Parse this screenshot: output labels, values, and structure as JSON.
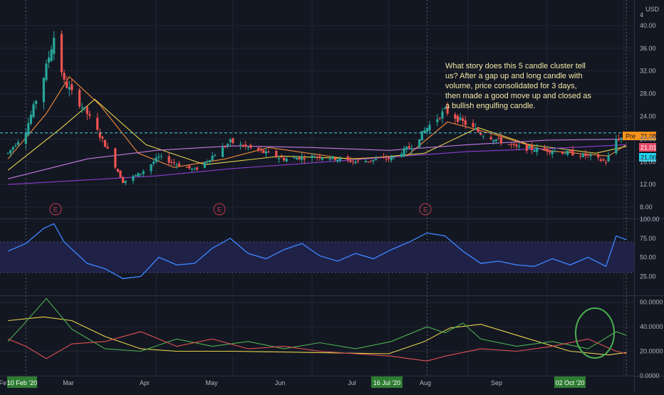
{
  "colors": {
    "background": "#131722",
    "grid": "#222633",
    "separator": "#2f3342",
    "axis_text": "#b2b5be",
    "bull": "#26a69a",
    "bear": "#ef5350",
    "ma_fast": "#f28b3a",
    "ma_slow": "#e6d24a",
    "ma_mid": "#c37be0",
    "ma_long": "#8e3fcf",
    "rsi": "#3b82f6",
    "rsi_band": "#1f2146",
    "rsi_level": "#4a4f8c",
    "dmi_adx": "#e6d24a",
    "dmi_plus": "#4caf50",
    "dmi_minus": "#e05252",
    "annotation_text": "#f4e9a6",
    "date_label_bg": "#2e7d32",
    "price_pre_bg": "#f7931a",
    "price_last_bg": "#e84b6a",
    "price_cur_bg": "#22d3ee",
    "earnings": "#c0394b",
    "ellipse": "#4caf50",
    "hline": "#4dd0e1"
  },
  "price_pane": {
    "currency": "USD",
    "y_ticks": [
      "4",
      "40.00",
      "36.00",
      "32.00",
      "28.00",
      "24.00",
      "20.00",
      "16.00",
      "12.00",
      "8.00"
    ],
    "earnings_label": "E",
    "annotation": [
      "What story does this 5 candle cluster tell",
      "us?  After a gap up and long candle with",
      "volume, price consolidated for 3 days,",
      "then made a good move up and closed as",
      "a bullish engulfing candle."
    ],
    "labels": {
      "pre_tag": "Pre",
      "pre_value": "21.08",
      "last_value": "21.01",
      "current_value": "21.00"
    }
  },
  "rsi_pane": {
    "y_ticks": [
      "100.00",
      "75.00",
      "50.00",
      "25.00"
    ]
  },
  "dmi_pane": {
    "y_ticks": [
      "60.0000",
      "40.0000",
      "20.0000",
      "0.0000"
    ]
  },
  "x_axis": {
    "ticks": [
      "Fe",
      "Mar",
      "Apr",
      "May",
      "Jun",
      "Jul",
      "Aug",
      "Sep"
    ],
    "highlights": [
      "10 Feb '20",
      "16 Jul '20",
      "02 Oct '20"
    ]
  },
  "chart_data": [
    {
      "type": "candlestick",
      "title": "",
      "x_range": [
        "2020-02-01",
        "2020-10-05"
      ],
      "ylim": [
        6,
        44
      ],
      "y_ticks": [
        8,
        12,
        16,
        20,
        24,
        28,
        32,
        36,
        40
      ],
      "reference_price": 21.08,
      "earnings_dates": [
        "2020-02-25",
        "2020-05-05",
        "2020-08-05"
      ],
      "candles_summary": [
        {
          "date": "2020-02-03",
          "close": 17.5
        },
        {
          "date": "2020-02-10",
          "close": 21.5
        },
        {
          "date": "2020-02-17",
          "close": 31.0
        },
        {
          "date": "2020-02-21",
          "close": 38.0
        },
        {
          "date": "2020-02-25",
          "close": 30.0
        },
        {
          "date": "2020-03-05",
          "close": 24.5
        },
        {
          "date": "2020-03-12",
          "close": 19.0
        },
        {
          "date": "2020-03-19",
          "close": 12.5
        },
        {
          "date": "2020-03-26",
          "close": 14.0
        },
        {
          "date": "2020-04-02",
          "close": 16.8
        },
        {
          "date": "2020-04-16",
          "close": 14.5
        },
        {
          "date": "2020-04-30",
          "close": 19.5
        },
        {
          "date": "2020-05-07",
          "close": 18.5
        },
        {
          "date": "2020-05-21",
          "close": 16.5
        },
        {
          "date": "2020-06-04",
          "close": 17.0
        },
        {
          "date": "2020-06-18",
          "close": 16.0
        },
        {
          "date": "2020-07-02",
          "close": 16.6
        },
        {
          "date": "2020-07-10",
          "close": 18.8
        },
        {
          "date": "2020-07-16",
          "close": 22.0
        },
        {
          "date": "2020-07-23",
          "close": 25.0
        },
        {
          "date": "2020-07-30",
          "close": 23.0
        },
        {
          "date": "2020-08-06",
          "close": 21.0
        },
        {
          "date": "2020-08-20",
          "close": 18.5
        },
        {
          "date": "2020-09-03",
          "close": 18.0
        },
        {
          "date": "2020-09-17",
          "close": 17.0
        },
        {
          "date": "2020-09-24",
          "close": 16.0
        },
        {
          "date": "2020-09-28",
          "close": 20.0
        },
        {
          "date": "2020-10-01",
          "close": 20.3
        },
        {
          "date": "2020-10-02",
          "close": 21.0
        }
      ],
      "moving_averages": [
        {
          "color": "#f28b3a",
          "points": [
            [
              "2020-02-03",
              16.5
            ],
            [
              "2020-02-18",
              24.5
            ],
            [
              "2020-02-27",
              31.0
            ],
            [
              "2020-03-10",
              26.0
            ],
            [
              "2020-03-25",
              17.5
            ],
            [
              "2020-04-08",
              15.0
            ],
            [
              "2020-04-28",
              16.5
            ],
            [
              "2020-05-15",
              18.5
            ],
            [
              "2020-06-15",
              16.5
            ],
            [
              "2020-07-08",
              17.0
            ],
            [
              "2020-07-24",
              23.0
            ],
            [
              "2020-08-10",
              21.0
            ],
            [
              "2020-08-31",
              18.0
            ],
            [
              "2020-09-25",
              17.0
            ],
            [
              "2020-10-02",
              19.0
            ]
          ]
        },
        {
          "color": "#e6d24a",
          "points": [
            [
              "2020-02-03",
              14.5
            ],
            [
              "2020-02-24",
              22.0
            ],
            [
              "2020-03-08",
              27.0
            ],
            [
              "2020-03-28",
              19.0
            ],
            [
              "2020-04-20",
              15.5
            ],
            [
              "2020-05-20",
              17.0
            ],
            [
              "2020-06-20",
              16.5
            ],
            [
              "2020-07-15",
              17.5
            ],
            [
              "2020-08-05",
              22.0
            ],
            [
              "2020-08-25",
              19.0
            ],
            [
              "2020-09-20",
              17.5
            ],
            [
              "2020-10-02",
              18.7
            ]
          ]
        },
        {
          "color": "#c37be0",
          "points": [
            [
              "2020-02-03",
              13.0
            ],
            [
              "2020-03-05",
              16.5
            ],
            [
              "2020-04-01",
              18.0
            ],
            [
              "2020-05-01",
              18.8
            ],
            [
              "2020-06-01",
              18.5
            ],
            [
              "2020-07-01",
              18.0
            ],
            [
              "2020-08-01",
              19.0
            ],
            [
              "2020-09-01",
              19.8
            ],
            [
              "2020-10-02",
              20.0
            ]
          ]
        },
        {
          "color": "#8e3fcf",
          "points": [
            [
              "2020-02-03",
              12.0
            ],
            [
              "2020-04-01",
              13.5
            ],
            [
              "2020-05-01",
              14.8
            ],
            [
              "2020-06-01",
              15.8
            ],
            [
              "2020-07-01",
              16.8
            ],
            [
              "2020-08-01",
              17.8
            ],
            [
              "2020-09-01",
              18.3
            ],
            [
              "2020-10-02",
              19.0
            ]
          ]
        }
      ]
    },
    {
      "type": "line",
      "title": "",
      "ylim": [
        0,
        100
      ],
      "y_ticks": [
        25,
        50,
        75,
        100
      ],
      "bands": [
        30,
        70
      ],
      "series": [
        {
          "color": "#3b82f6",
          "points": [
            [
              "2020-02-03",
              58
            ],
            [
              "2020-02-10",
              68
            ],
            [
              "2020-02-17",
              88
            ],
            [
              "2020-02-21",
              94
            ],
            [
              "2020-02-25",
              70
            ],
            [
              "2020-03-05",
              42
            ],
            [
              "2020-03-12",
              35
            ],
            [
              "2020-03-19",
              22
            ],
            [
              "2020-03-26",
              25
            ],
            [
              "2020-04-02",
              50
            ],
            [
              "2020-04-09",
              40
            ],
            [
              "2020-04-16",
              42
            ],
            [
              "2020-04-23",
              62
            ],
            [
              "2020-04-30",
              75
            ],
            [
              "2020-05-07",
              55
            ],
            [
              "2020-05-14",
              48
            ],
            [
              "2020-05-21",
              60
            ],
            [
              "2020-05-28",
              68
            ],
            [
              "2020-06-04",
              52
            ],
            [
              "2020-06-11",
              45
            ],
            [
              "2020-06-18",
              55
            ],
            [
              "2020-06-25",
              48
            ],
            [
              "2020-07-02",
              60
            ],
            [
              "2020-07-09",
              70
            ],
            [
              "2020-07-16",
              82
            ],
            [
              "2020-07-23",
              78
            ],
            [
              "2020-07-30",
              58
            ],
            [
              "2020-08-06",
              42
            ],
            [
              "2020-08-13",
              45
            ],
            [
              "2020-08-20",
              40
            ],
            [
              "2020-08-27",
              38
            ],
            [
              "2020-09-03",
              48
            ],
            [
              "2020-09-10",
              40
            ],
            [
              "2020-09-17",
              50
            ],
            [
              "2020-09-24",
              38
            ],
            [
              "2020-09-28",
              78
            ],
            [
              "2020-10-02",
              73
            ]
          ]
        }
      ]
    },
    {
      "type": "line",
      "title": "",
      "ylim": [
        0,
        65
      ],
      "y_ticks": [
        0,
        20,
        40,
        60
      ],
      "series": [
        {
          "color": "#e6d24a",
          "points": [
            [
              "2020-02-03",
              45
            ],
            [
              "2020-02-17",
              48
            ],
            [
              "2020-02-28",
              45
            ],
            [
              "2020-03-12",
              32
            ],
            [
              "2020-03-26",
              22
            ],
            [
              "2020-04-09",
              20
            ],
            [
              "2020-05-01",
              20
            ],
            [
              "2020-06-01",
              19
            ],
            [
              "2020-07-01",
              18
            ],
            [
              "2020-07-15",
              28
            ],
            [
              "2020-07-25",
              39
            ],
            [
              "2020-08-06",
              42
            ],
            [
              "2020-08-25",
              30
            ],
            [
              "2020-09-10",
              20
            ],
            [
              "2020-09-25",
              17
            ],
            [
              "2020-10-02",
              19
            ]
          ]
        },
        {
          "color": "#4caf50",
          "points": [
            [
              "2020-02-03",
              28
            ],
            [
              "2020-02-10",
              44
            ],
            [
              "2020-02-18",
              63
            ],
            [
              "2020-02-28",
              38
            ],
            [
              "2020-03-12",
              22
            ],
            [
              "2020-03-26",
              20
            ],
            [
              "2020-04-09",
              30
            ],
            [
              "2020-04-23",
              24
            ],
            [
              "2020-05-07",
              28
            ],
            [
              "2020-05-21",
              22
            ],
            [
              "2020-06-04",
              27
            ],
            [
              "2020-06-18",
              22
            ],
            [
              "2020-07-02",
              28
            ],
            [
              "2020-07-16",
              40
            ],
            [
              "2020-07-23",
              35
            ],
            [
              "2020-07-30",
              43
            ],
            [
              "2020-08-06",
              30
            ],
            [
              "2020-08-20",
              24
            ],
            [
              "2020-09-03",
              28
            ],
            [
              "2020-09-17",
              22
            ],
            [
              "2020-09-28",
              36
            ],
            [
              "2020-10-02",
              33
            ]
          ]
        },
        {
          "color": "#e05252",
          "points": [
            [
              "2020-02-03",
              30
            ],
            [
              "2020-02-10",
              24
            ],
            [
              "2020-02-18",
              14
            ],
            [
              "2020-02-28",
              26
            ],
            [
              "2020-03-12",
              28
            ],
            [
              "2020-03-26",
              36
            ],
            [
              "2020-04-09",
              24
            ],
            [
              "2020-04-23",
              30
            ],
            [
              "2020-05-07",
              22
            ],
            [
              "2020-05-21",
              24
            ],
            [
              "2020-06-04",
              20
            ],
            [
              "2020-06-18",
              18
            ],
            [
              "2020-07-02",
              16
            ],
            [
              "2020-07-16",
              12
            ],
            [
              "2020-07-23",
              16
            ],
            [
              "2020-08-06",
              22
            ],
            [
              "2020-08-20",
              20
            ],
            [
              "2020-09-03",
              24
            ],
            [
              "2020-09-17",
              30
            ],
            [
              "2020-09-28",
              20
            ],
            [
              "2020-10-02",
              18
            ]
          ]
        }
      ]
    }
  ]
}
